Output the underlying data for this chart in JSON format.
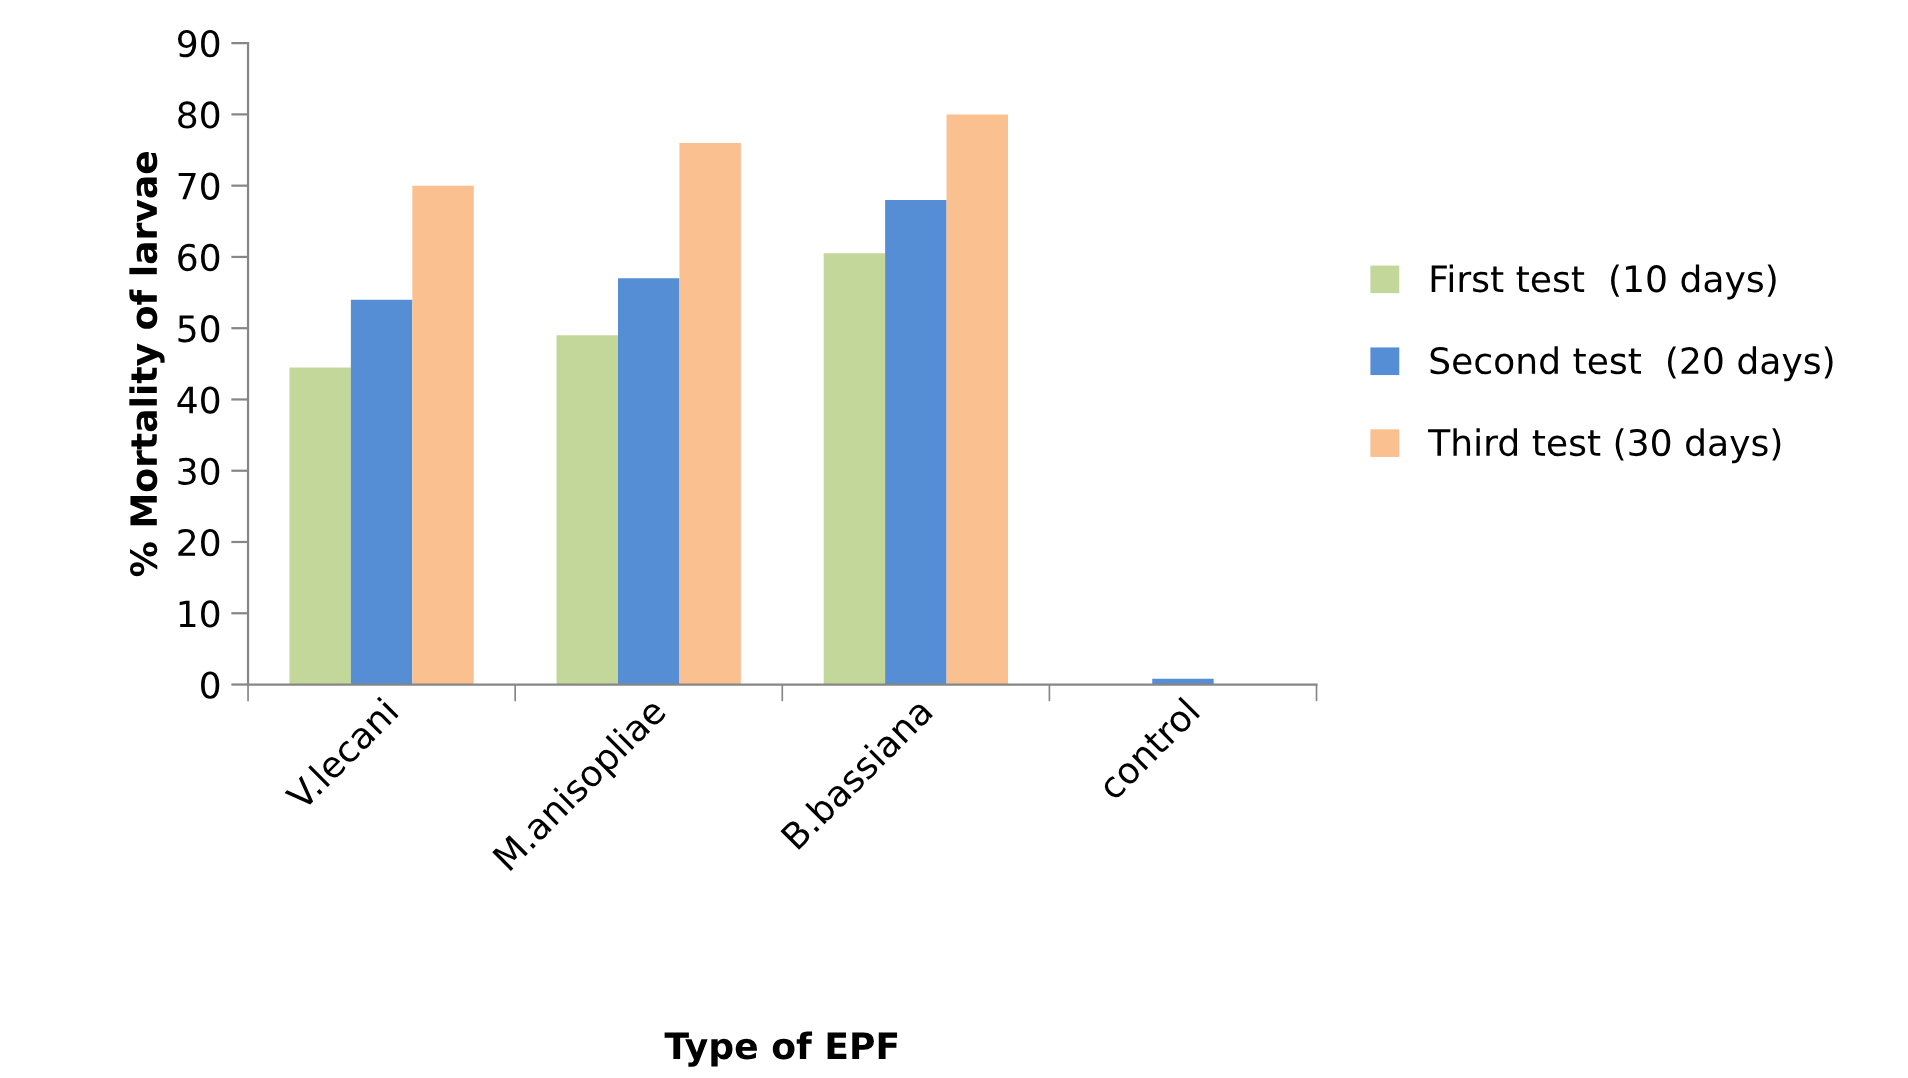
{
  "chart_data": {
    "type": "bar",
    "xlabel": "Type of EPF",
    "ylabel": "% Mortality of larvae",
    "categories": [
      "V.lecani",
      "M.anisopliae",
      "B.bassiana",
      "control"
    ],
    "series": [
      {
        "name": "First test  (10 days)",
        "color": "#c4d79b",
        "values": [
          44.5,
          49,
          60.5,
          0
        ]
      },
      {
        "name": "Second test  (20 days)",
        "color": "#558ed5",
        "values": [
          54,
          57,
          68,
          0.8
        ]
      },
      {
        "name": "Third test (30 days)",
        "color": "#fac090",
        "values": [
          70,
          76,
          80,
          0
        ]
      }
    ],
    "ylim": [
      0,
      90
    ],
    "yticks": [
      0,
      10,
      20,
      30,
      40,
      50,
      60,
      70,
      80,
      90
    ],
    "grid": false,
    "legend": "right"
  }
}
